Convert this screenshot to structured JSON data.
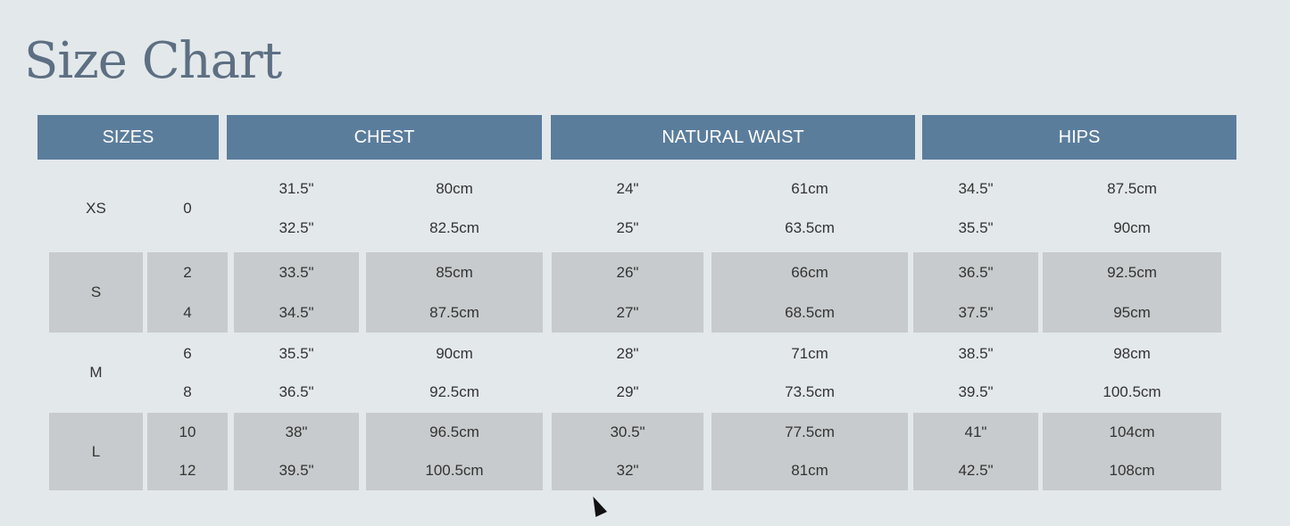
{
  "title": "Size Chart",
  "headers": [
    "SIZES",
    "CHEST",
    "NATURAL WAIST",
    "HIPS"
  ],
  "colors": {
    "header_bg": "#5b7d9c",
    "shade": "#c8cbcd",
    "background": "#e3e8eb",
    "title": "#5d6f82"
  },
  "rows": [
    {
      "size": "XS",
      "nums": [
        "0"
      ],
      "chest_in": [
        "31.5\"",
        "32.5\""
      ],
      "chest_cm": [
        "80cm",
        "82.5cm"
      ],
      "waist_in": [
        "24\"",
        "25\""
      ],
      "waist_cm": [
        "61cm",
        "63.5cm"
      ],
      "hips_in": [
        "34.5\"",
        "35.5\""
      ],
      "hips_cm": [
        "87.5cm",
        "90cm"
      ]
    },
    {
      "size": "S",
      "nums": [
        "2",
        "4"
      ],
      "chest_in": [
        "33.5\"",
        "34.5\""
      ],
      "chest_cm": [
        "85cm",
        "87.5cm"
      ],
      "waist_in": [
        "26\"",
        "27\""
      ],
      "waist_cm": [
        "66cm",
        "68.5cm"
      ],
      "hips_in": [
        "36.5\"",
        "37.5\""
      ],
      "hips_cm": [
        "92.5cm",
        "95cm"
      ]
    },
    {
      "size": "M",
      "nums": [
        "6",
        "8"
      ],
      "chest_in": [
        "35.5\"",
        "36.5\""
      ],
      "chest_cm": [
        "90cm",
        "92.5cm"
      ],
      "waist_in": [
        "28\"",
        "29\""
      ],
      "waist_cm": [
        "71cm",
        "73.5cm"
      ],
      "hips_in": [
        "38.5\"",
        "39.5\""
      ],
      "hips_cm": [
        "98cm",
        "100.5cm"
      ]
    },
    {
      "size": "L",
      "nums": [
        "10",
        "12"
      ],
      "chest_in": [
        "38\"",
        "39.5\""
      ],
      "chest_cm": [
        "96.5cm",
        "100.5cm"
      ],
      "waist_in": [
        "30.5\"",
        "32\""
      ],
      "waist_cm": [
        "77.5cm",
        "81cm"
      ],
      "hips_in": [
        "41\"",
        "42.5\""
      ],
      "hips_cm": [
        "104cm",
        "108cm"
      ]
    }
  ]
}
